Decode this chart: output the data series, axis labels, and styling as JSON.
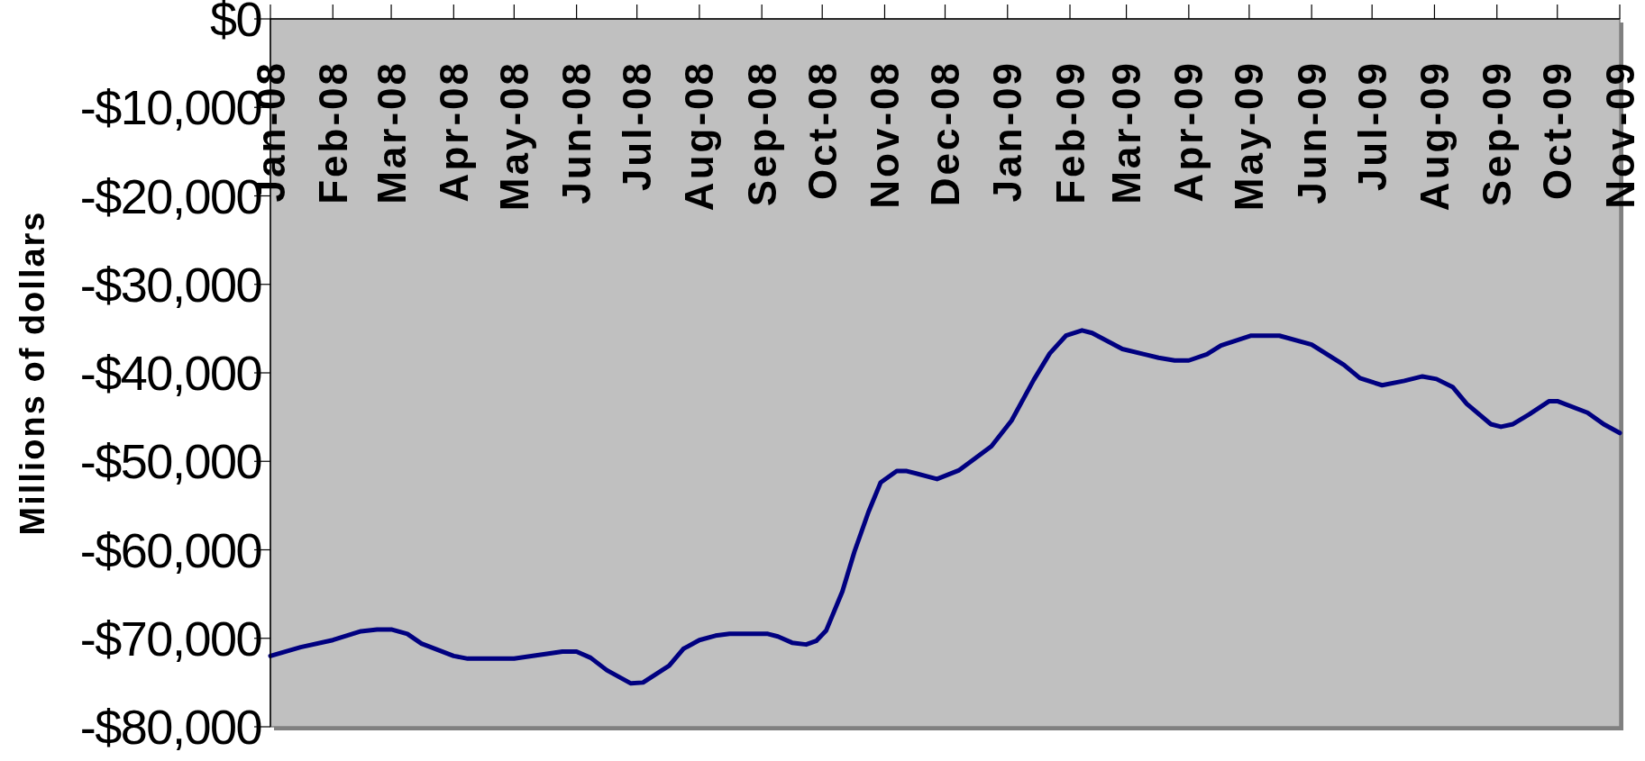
{
  "chart_data": {
    "type": "line",
    "ylabel": "Millions of dollars",
    "x": [
      "2008-01-01",
      "2008-01-16",
      "2008-02-01",
      "2008-02-15",
      "2008-02-23",
      "2008-03-01",
      "2008-03-09",
      "2008-03-16",
      "2008-04-01",
      "2008-04-08",
      "2008-05-01",
      "2008-05-25",
      "2008-06-01",
      "2008-06-08",
      "2008-06-16",
      "2008-06-28",
      "2008-07-04",
      "2008-07-17",
      "2008-07-24",
      "2008-08-01",
      "2008-08-09",
      "2008-08-16",
      "2008-09-04",
      "2008-09-09",
      "2008-09-16",
      "2008-09-23",
      "2008-09-28",
      "2008-10-03",
      "2008-10-11",
      "2008-10-17",
      "2008-10-24",
      "2008-10-30",
      "2008-11-07",
      "2008-11-12",
      "2008-11-27",
      "2008-12-08",
      "2008-12-24",
      "2009-01-03",
      "2009-01-14",
      "2009-01-22",
      "2009-01-30",
      "2009-02-07",
      "2009-02-12",
      "2009-02-27",
      "2009-03-17",
      "2009-03-25",
      "2009-04-01",
      "2009-04-10",
      "2009-04-17",
      "2009-05-02",
      "2009-05-16",
      "2009-06-01",
      "2009-06-17",
      "2009-06-25",
      "2009-07-06",
      "2009-07-17",
      "2009-07-26",
      "2009-08-02",
      "2009-08-10",
      "2009-08-17",
      "2009-08-29",
      "2009-09-03",
      "2009-09-09",
      "2009-09-17",
      "2009-09-27",
      "2009-10-01",
      "2009-10-16",
      "2009-10-24",
      "2009-11-01"
    ],
    "series": [
      {
        "color": "#000080",
        "values": [
          -72000,
          -71000,
          -70200,
          -69200,
          -69000,
          -69000,
          -69500,
          -70600,
          -72000,
          -72300,
          -72300,
          -71500,
          -71500,
          -72200,
          -73600,
          -75100,
          -75000,
          -73100,
          -71200,
          -70200,
          -69700,
          -69500,
          -69500,
          -69800,
          -70500,
          -70700,
          -70300,
          -69100,
          -64700,
          -60200,
          -55700,
          -52400,
          -51100,
          -51100,
          -52000,
          -51000,
          -48300,
          -45400,
          -40800,
          -37800,
          -35800,
          -35200,
          -35500,
          -37300,
          -38300,
          -38600,
          -38600,
          -37900,
          -36900,
          -35800,
          -35800,
          -36800,
          -39100,
          -40600,
          -41400,
          -40900,
          -40400,
          -40700,
          -41600,
          -43500,
          -45800,
          -46100,
          -45800,
          -44700,
          -43200,
          -43200,
          -44500,
          -45800,
          -46800
        ]
      }
    ],
    "xlim": [
      "2008-01-01",
      "2009-11-01"
    ],
    "xticks": [
      {
        "value": "2008-01-01",
        "label": "Jan-08"
      },
      {
        "value": "2008-02-01",
        "label": "Feb-08"
      },
      {
        "value": "2008-03-01",
        "label": "Mar-08"
      },
      {
        "value": "2008-04-01",
        "label": "Apr-08"
      },
      {
        "value": "2008-05-01",
        "label": "May-08"
      },
      {
        "value": "2008-06-01",
        "label": "Jun-08"
      },
      {
        "value": "2008-07-01",
        "label": "Jul-08"
      },
      {
        "value": "2008-08-01",
        "label": "Aug-08"
      },
      {
        "value": "2008-09-01",
        "label": "Sep-08"
      },
      {
        "value": "2008-10-01",
        "label": "Oct-08"
      },
      {
        "value": "2008-11-01",
        "label": "Nov-08"
      },
      {
        "value": "2008-12-01",
        "label": "Dec-08"
      },
      {
        "value": "2009-01-01",
        "label": "Jan-09"
      },
      {
        "value": "2009-02-01",
        "label": "Feb-09"
      },
      {
        "value": "2009-03-01",
        "label": "Mar-09"
      },
      {
        "value": "2009-04-01",
        "label": "Apr-09"
      },
      {
        "value": "2009-05-01",
        "label": "May-09"
      },
      {
        "value": "2009-06-01",
        "label": "Jun-09"
      },
      {
        "value": "2009-07-01",
        "label": "Jul-09"
      },
      {
        "value": "2009-08-01",
        "label": "Aug-09"
      },
      {
        "value": "2009-09-01",
        "label": "Sep-09"
      },
      {
        "value": "2009-10-01",
        "label": "Oct-09"
      },
      {
        "value": "2009-11-01",
        "label": "Nov-09"
      }
    ],
    "ylim": [
      -80000,
      0
    ],
    "yticks": [
      {
        "value": 0,
        "label": "$0"
      },
      {
        "value": -10000,
        "label": "-$10,000"
      },
      {
        "value": -20000,
        "label": "-$20,000"
      },
      {
        "value": -30000,
        "label": "-$30,000"
      },
      {
        "value": -40000,
        "label": "-$40,000"
      },
      {
        "value": -50000,
        "label": "-$50,000"
      },
      {
        "value": -60000,
        "label": "-$60,000"
      },
      {
        "value": -70000,
        "label": "-$70,000"
      },
      {
        "value": -80000,
        "label": "-$80,000"
      }
    ],
    "grid": false,
    "marker": "none",
    "line_style": "solid"
  }
}
